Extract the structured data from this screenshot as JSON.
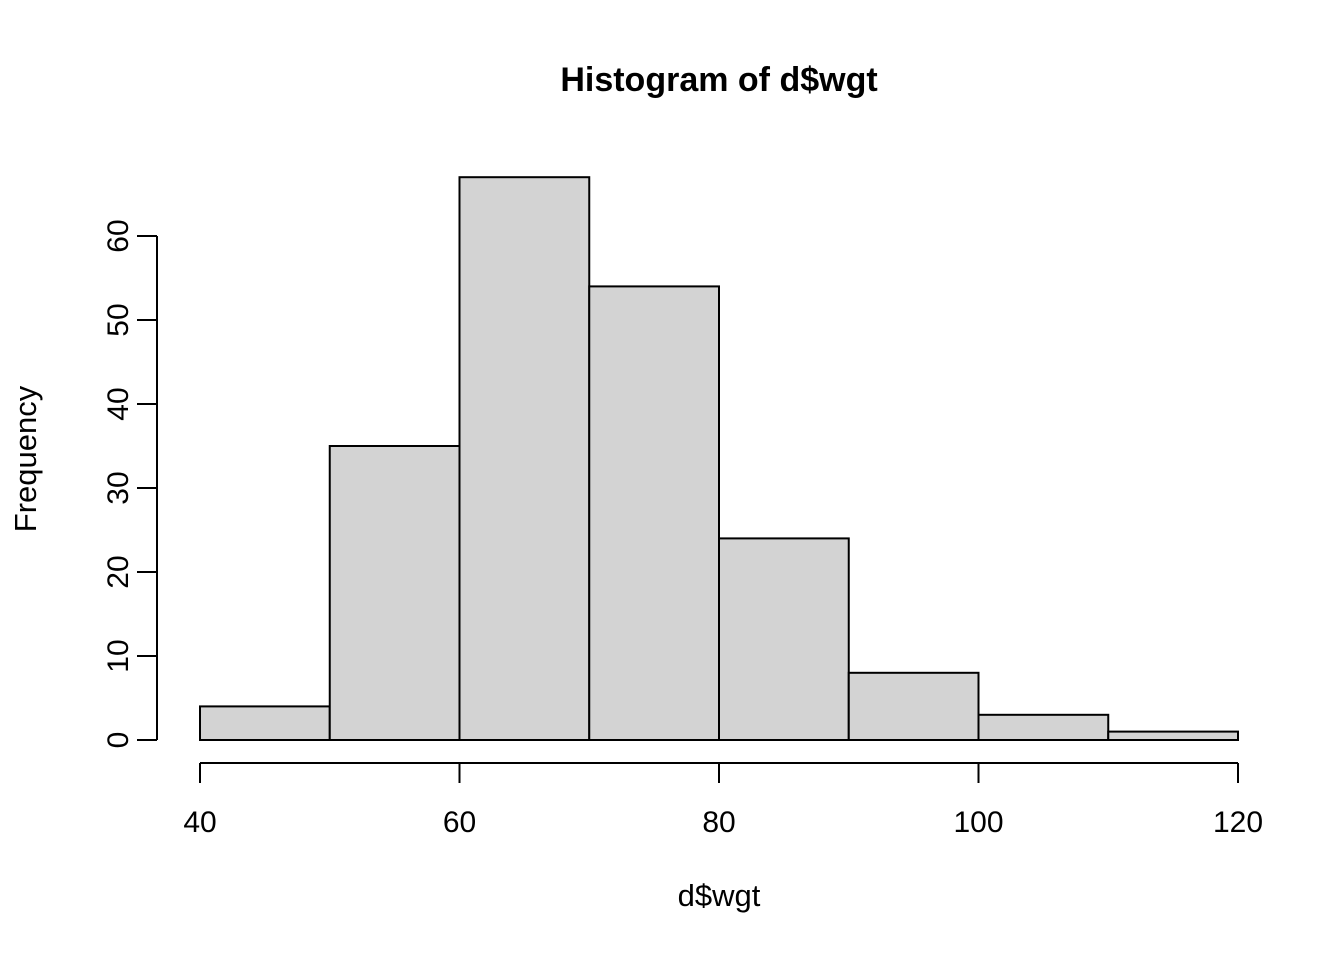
{
  "figure": {
    "background_color": "#ffffff",
    "foreground_color": "#000000"
  },
  "chart_data": {
    "type": "bar",
    "subtype": "histogram",
    "title": "Histogram of d$wgt",
    "xlabel": "d$wgt",
    "ylabel": "Frequency",
    "breaks": [
      40,
      50,
      60,
      70,
      80,
      90,
      100,
      110,
      120
    ],
    "counts": [
      4,
      35,
      67,
      54,
      24,
      8,
      3,
      1
    ],
    "x_tick_labels": [
      "40",
      "60",
      "80",
      "100",
      "120"
    ],
    "x_tick_values": [
      40,
      60,
      80,
      100,
      120
    ],
    "y_tick_labels": [
      "0",
      "10",
      "20",
      "30",
      "40",
      "50",
      "60"
    ],
    "y_tick_values": [
      0,
      10,
      20,
      30,
      40,
      50,
      60
    ],
    "xlim": [
      40,
      120
    ],
    "ylim": [
      0,
      67
    ],
    "grid": false,
    "legend": null,
    "bar_fill": "#d3d3d3",
    "bar_stroke": "#000000",
    "axis_color": "#000000"
  }
}
